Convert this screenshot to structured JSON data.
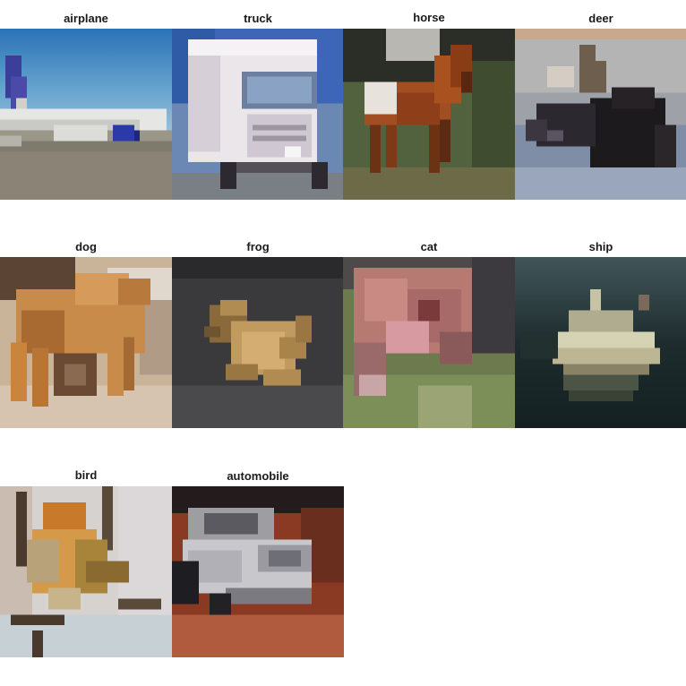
{
  "grid": {
    "tiles": [
      {
        "label": "airplane"
      },
      {
        "label": "truck"
      },
      {
        "label": "horse"
      },
      {
        "label": "deer"
      },
      {
        "label": "dog"
      },
      {
        "label": "frog"
      },
      {
        "label": "cat"
      },
      {
        "label": "ship"
      },
      {
        "label": "bird"
      },
      {
        "label": "automobile"
      }
    ]
  }
}
